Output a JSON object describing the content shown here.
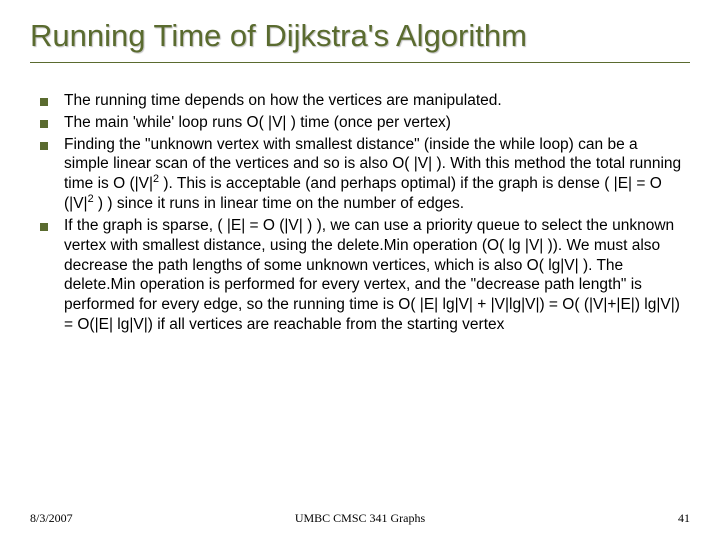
{
  "title": "Running Time of Dijkstra's Algorithm",
  "title_color": "#5a6b2f",
  "title_fontsize": 31,
  "underline_color": "#5a6b2f",
  "bullet_marker_color": "#5a6b2f",
  "body_fontsize": 15.5,
  "background_color": "#ffffff",
  "bullets": [
    {
      "html": "The running time depends on how the vertices are manipulated."
    },
    {
      "html": "The main 'while' loop runs O( |V| ) time (once per vertex)"
    },
    {
      "html": "Finding the \"unknown vertex with smallest distance\" (inside the while loop) can be a simple linear scan of the vertices and so is also O( |V| ).  With this method the total running time is O (|V|<span class=\"sup\">2</span> ).  This is acceptable (and perhaps optimal) if the graph is dense ( |E| = O (|V|<span class=\"sup\">2</span> ) ) since it runs in linear time on the number of edges."
    },
    {
      "html": "If the graph is sparse, ( |E| = O (|V| ) ), we can use a priority queue to select the unknown vertex with smallest distance, using the delete.Min operation (O( lg |V| )).  We must also decrease the path lengths of some unknown vertices, which is also O( lg|V| ). The delete.Min operation is performed for every vertex, and the \"decrease path length\" is performed for every edge, so the running time is O( |E| lg|V| + |V|lg|V|) = O( (|V|+|E|) lg|V|) = O(|E| lg|V|) if all vertices are reachable from the starting vertex"
    }
  ],
  "footer": {
    "date": "8/3/2007",
    "center": "UMBC CMSC 341 Graphs",
    "page": "41",
    "fontsize": 12
  }
}
